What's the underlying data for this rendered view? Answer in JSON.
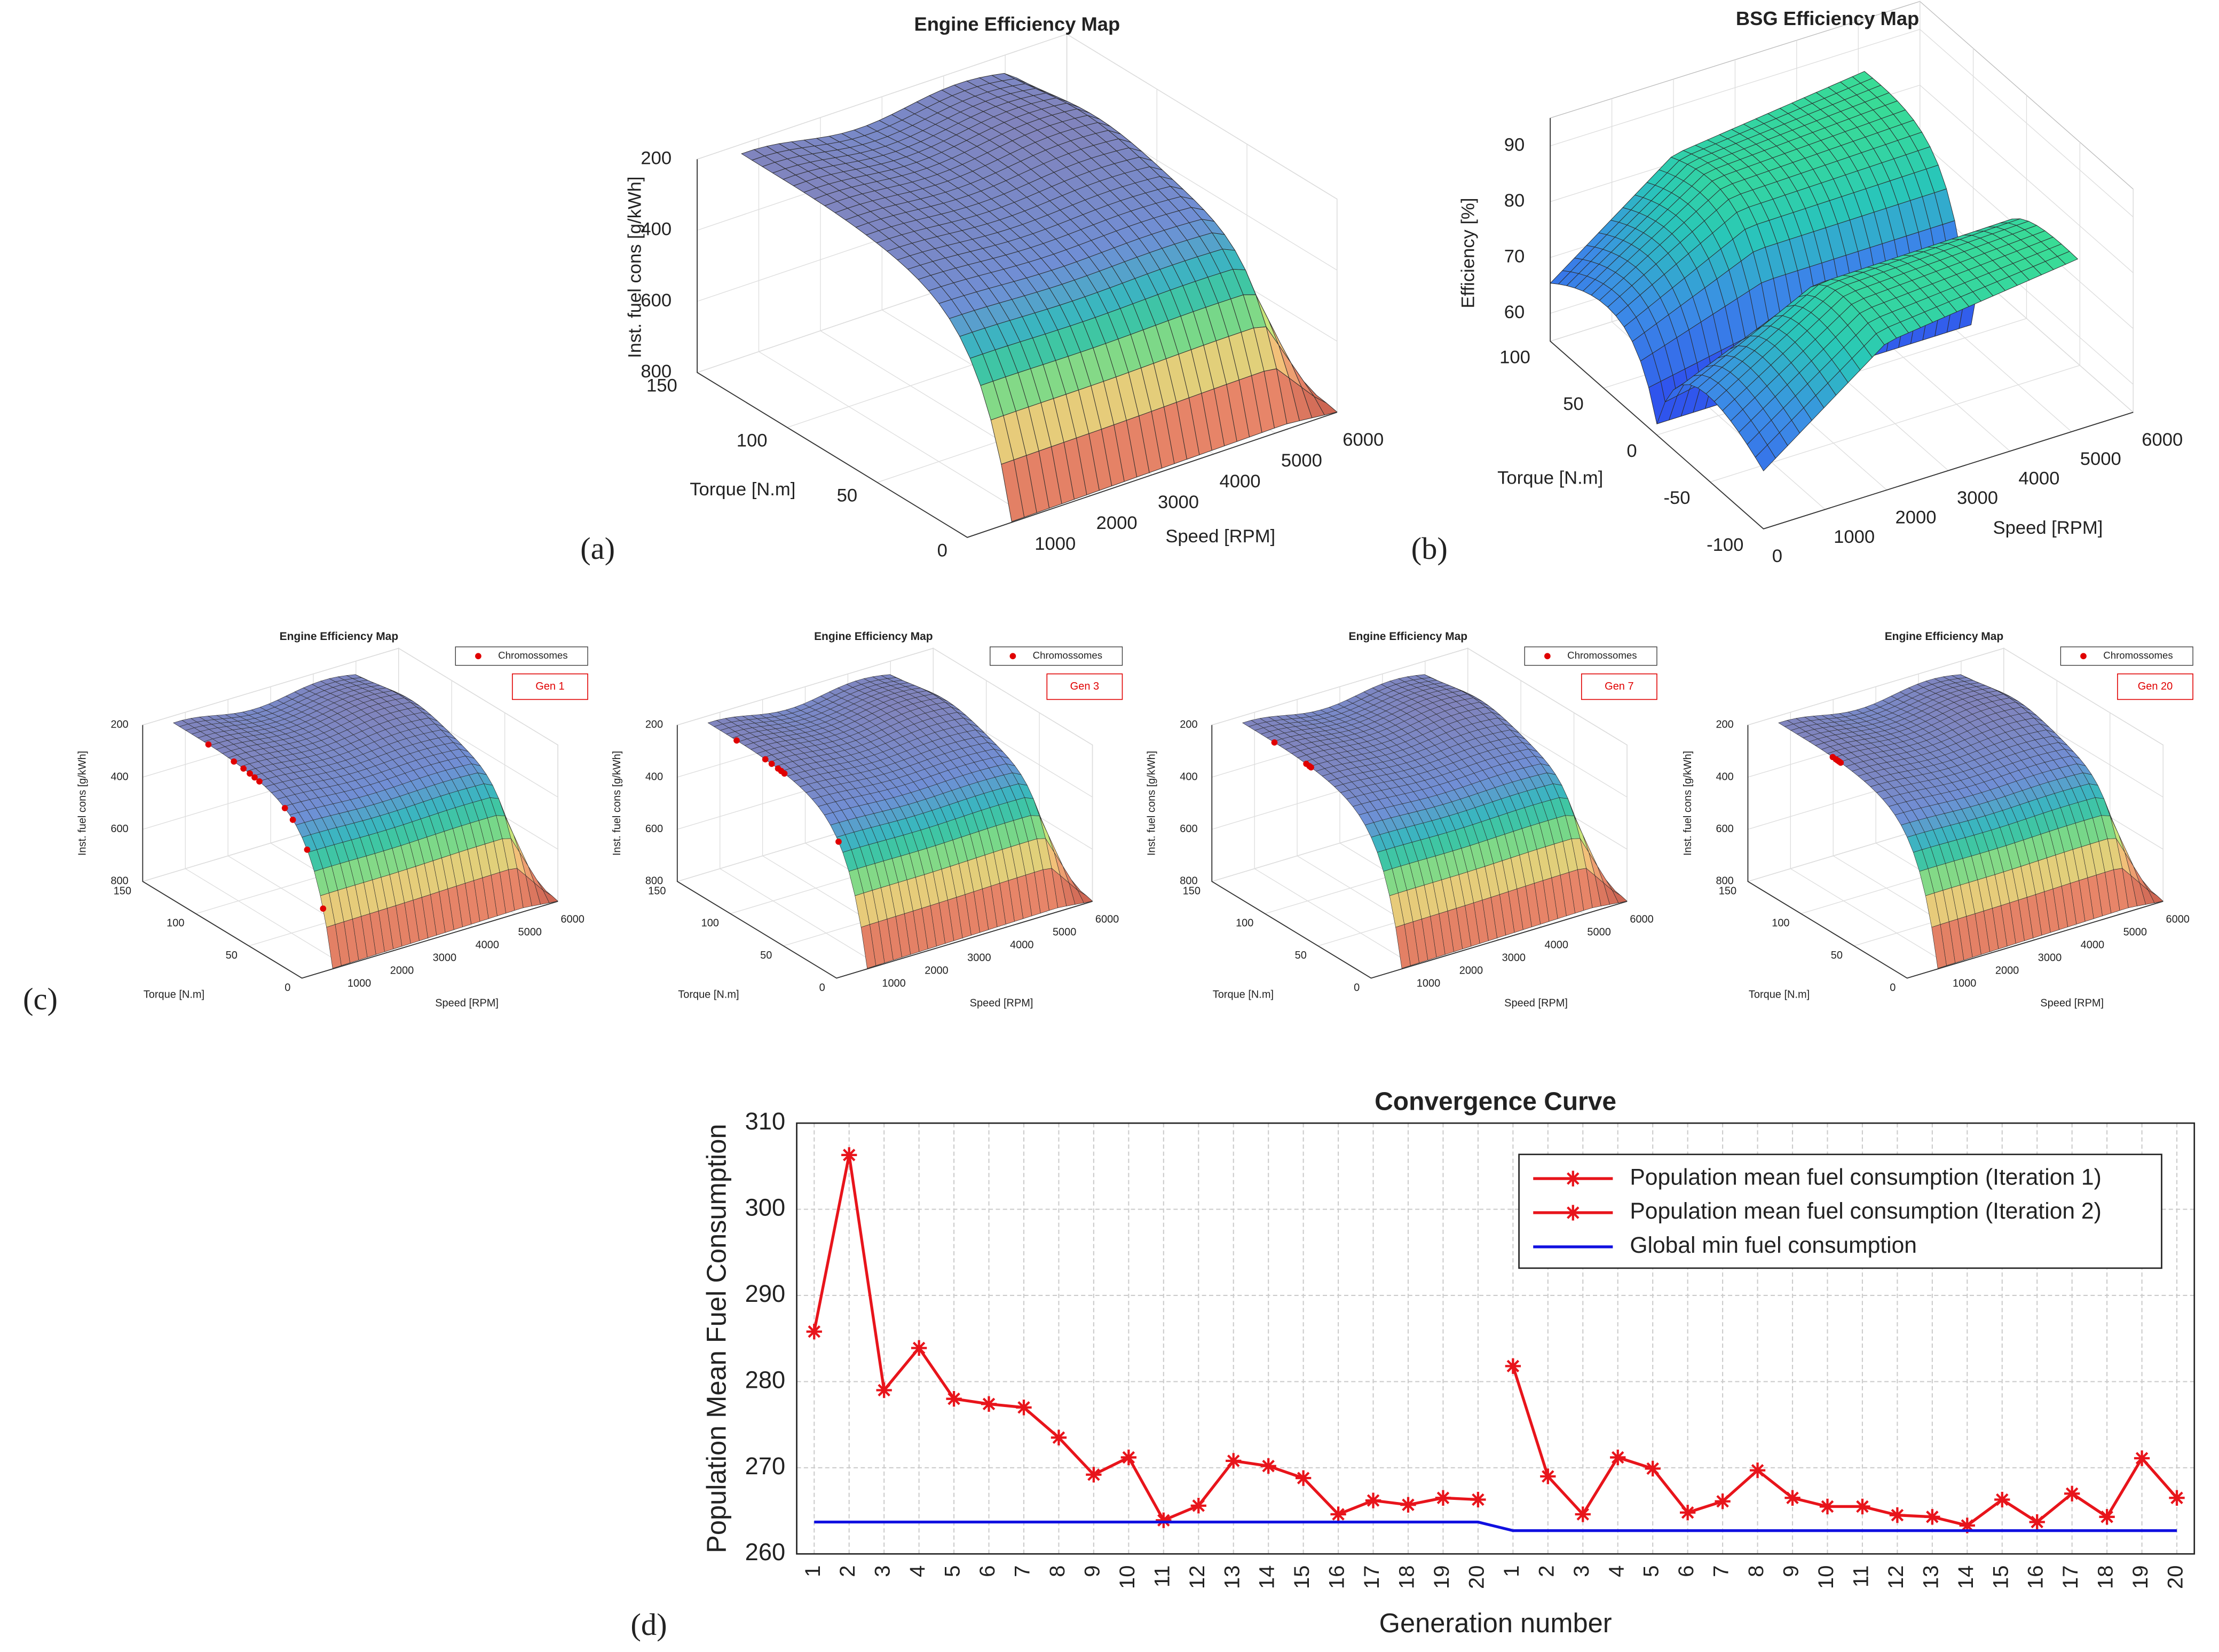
{
  "panel_labels": [
    "(a)",
    "(b)",
    "(c)",
    "(d)"
  ],
  "chart_data": [
    {
      "type": "surface",
      "title": "Engine Efficiency Map",
      "zlabel": "Inst. fuel cons [g/kWh]",
      "ylabel": "Torque [N.m]",
      "xlabel": "Speed [RPM]",
      "xlim": [
        0,
        6000
      ],
      "xticks": [
        1000,
        2000,
        3000,
        4000,
        5000,
        6000
      ],
      "ylim": [
        0,
        150
      ],
      "yticks": [
        0,
        50,
        100,
        150
      ],
      "zlim": [
        200,
        800
      ],
      "zticks": [
        200,
        400,
        600,
        800
      ],
      "zdir": "reverse",
      "grid": true
    },
    {
      "type": "surface",
      "title": "BSG Efficiency Map",
      "zlabel": "Efficiency [%]",
      "ylabel": "Torque [N.m]",
      "xlabel": "Speed [RPM]",
      "xlim": [
        0,
        6000
      ],
      "xticks": [
        0,
        1000,
        2000,
        3000,
        4000,
        5000,
        6000
      ],
      "ylim": [
        -100,
        100
      ],
      "yticks": [
        -100,
        -50,
        0,
        50,
        100
      ],
      "zlim": [
        55,
        95
      ],
      "zticks": [
        60,
        70,
        80,
        90
      ],
      "grid": true
    },
    {
      "type": "surface",
      "title": "Engine Efficiency Map",
      "zlabel": "Inst. fuel cons [g/kWh]",
      "ylabel": "Torque [N.m]",
      "xlabel": "Speed [RPM]",
      "xlim": [
        0,
        6000
      ],
      "xticks": [
        1000,
        2000,
        3000,
        4000,
        5000,
        6000
      ],
      "ylim": [
        0,
        150
      ],
      "yticks": [
        0,
        50,
        100,
        150
      ],
      "zlim": [
        200,
        800
      ],
      "zticks": [
        200,
        400,
        600,
        800
      ],
      "zdir": "reverse",
      "grid": true,
      "legend_label": "Chromossomes",
      "color": "#e00000",
      "annotation": "Gen 1"
    },
    {
      "type": "surface",
      "title": "Engine Efficiency Map",
      "zlabel": "Inst. fuel cons [g/kWh]",
      "ylabel": "Torque [N.m]",
      "xlabel": "Speed [RPM]",
      "xlim": [
        0,
        6000
      ],
      "xticks": [
        1000,
        2000,
        3000,
        4000,
        5000,
        6000
      ],
      "ylim": [
        0,
        150
      ],
      "yticks": [
        0,
        50,
        100,
        150
      ],
      "zlim": [
        200,
        800
      ],
      "zticks": [
        200,
        400,
        600,
        800
      ],
      "zdir": "reverse",
      "grid": true,
      "legend_label": "Chromossomes",
      "color": "#e00000",
      "annotation": "Gen 3"
    },
    {
      "type": "surface",
      "title": "Engine Efficiency Map",
      "zlabel": "Inst. fuel cons [g/kWh]",
      "ylabel": "Torque [N.m]",
      "xlabel": "Speed [RPM]",
      "xlim": [
        0,
        6000
      ],
      "xticks": [
        1000,
        2000,
        3000,
        4000,
        5000,
        6000
      ],
      "ylim": [
        0,
        150
      ],
      "yticks": [
        0,
        50,
        100,
        150
      ],
      "zlim": [
        200,
        800
      ],
      "zticks": [
        200,
        400,
        600,
        800
      ],
      "zdir": "reverse",
      "grid": true,
      "legend_label": "Chromossomes",
      "color": "#e00000",
      "annotation": "Gen 7"
    },
    {
      "type": "surface",
      "title": "Engine Efficiency Map",
      "zlabel": "Inst. fuel cons [g/kWh]",
      "ylabel": "Torque [N.m]",
      "xlabel": "Speed [RPM]",
      "xlim": [
        0,
        6000
      ],
      "xticks": [
        1000,
        2000,
        3000,
        4000,
        5000,
        6000
      ],
      "ylim": [
        0,
        150
      ],
      "yticks": [
        0,
        50,
        100,
        150
      ],
      "zlim": [
        200,
        800
      ],
      "zticks": [
        200,
        400,
        600,
        800
      ],
      "zdir": "reverse",
      "grid": true,
      "legend_label": "Chromossomes",
      "color": "#e00000",
      "annotation": "Gen 20"
    },
    {
      "type": "line",
      "title": "Convergence Curve",
      "xlabel": "Generation number",
      "ylabel": "Population Mean Fuel Consumption",
      "categories": [
        "1",
        "2",
        "3",
        "4",
        "5",
        "6",
        "7",
        "8",
        "9",
        "10",
        "11",
        "12",
        "13",
        "14",
        "15",
        "16",
        "17",
        "18",
        "19",
        "20",
        "1",
        "2",
        "3",
        "4",
        "5",
        "6",
        "7",
        "8",
        "9",
        "10",
        "11",
        "12",
        "13",
        "14",
        "15",
        "16",
        "17",
        "18",
        "19",
        "20"
      ],
      "ylim": [
        260,
        310
      ],
      "yticks": [
        260,
        270,
        280,
        290,
        300,
        310
      ],
      "grid": true,
      "legend": "upper right",
      "series": [
        {
          "name": "Population mean fuel consumption (Iteration 1)",
          "color": "#e8141b",
          "marker": "asterisk",
          "values": [
            285.8,
            306.3,
            279,
            283.9,
            278,
            277.4,
            277,
            273.5,
            269.2,
            271.2,
            263.9,
            265.6,
            270.8,
            270.2,
            268.8,
            264.6,
            266.2,
            265.7,
            266.5,
            266.3,
            null,
            null,
            null,
            null,
            null,
            null,
            null,
            null,
            null,
            null,
            null,
            null,
            null,
            null,
            null,
            null,
            null,
            null,
            null,
            null
          ]
        },
        {
          "name": "Population mean fuel consumption (Iteration 2)",
          "color": "#e8141b",
          "marker": "asterisk",
          "values": [
            null,
            null,
            null,
            null,
            null,
            null,
            null,
            null,
            null,
            null,
            null,
            null,
            null,
            null,
            null,
            null,
            null,
            null,
            null,
            null,
            281.8,
            269,
            264.6,
            271.2,
            269.9,
            264.8,
            266.1,
            269.7,
            266.5,
            265.5,
            265.5,
            264.5,
            264.3,
            263.3,
            266.3,
            263.7,
            267,
            264.3,
            271.1,
            266.5
          ]
        },
        {
          "name": "Global min fuel consumption",
          "color": "#1010e0",
          "values": [
            263.7,
            263.7,
            263.7,
            263.7,
            263.7,
            263.7,
            263.7,
            263.7,
            263.7,
            263.7,
            263.7,
            263.7,
            263.7,
            263.7,
            263.7,
            263.7,
            263.7,
            263.7,
            263.7,
            263.7,
            262.7,
            262.7,
            262.7,
            262.7,
            262.7,
            262.7,
            262.7,
            262.7,
            262.7,
            262.7,
            262.7,
            262.7,
            262.7,
            262.7,
            262.7,
            262.7,
            262.7,
            262.7,
            262.7,
            262.7
          ]
        }
      ]
    }
  ]
}
